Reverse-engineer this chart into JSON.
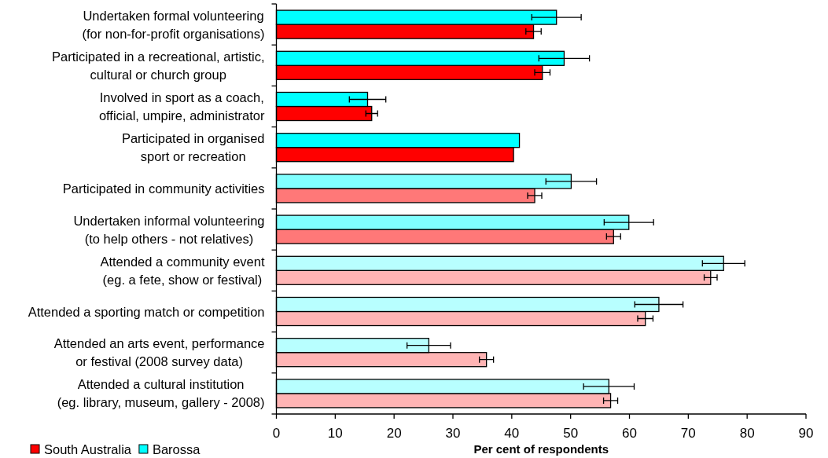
{
  "chart_data": {
    "type": "bar",
    "orientation": "horizontal",
    "xlabel": "Per cent of respondents",
    "categories": [
      "Undertaken formal volunteering\n(for non-for-profit organisations)",
      "Participated in a recreational, artistic,\ncultural or church group",
      "Involved in sport as a coach,\nofficial, umpire, administrator",
      "Participated in organised\nsport or recreation",
      "Participated in community activities",
      "Undertaken informal volunteering\n(to help others - not relatives)",
      "Attended a community event\n(eg. a fete, show or festival)",
      "Attended a sporting match or competition",
      "Attended an arts event, performance\nor festival (2008 survey data)",
      "Attended a cultural institution\n(eg. library, museum, gallery - 2008)"
    ],
    "series": [
      {
        "name": "South Australia",
        "color": "#ff0000",
        "colors": [
          "#ff0000",
          "#ff0000",
          "#ff0000",
          "#ff0000",
          "#ff7878",
          "#ff7878",
          "#ffb4b4",
          "#ffb4b4",
          "#ffb4b4",
          "#ffb4b4"
        ],
        "values": [
          43.7,
          45.2,
          16.2,
          40.3,
          43.9,
          57.3,
          73.8,
          62.7,
          35.7,
          56.8
        ],
        "errors": [
          1.3,
          1.3,
          1.0,
          null,
          1.2,
          1.2,
          1.1,
          1.3,
          1.2,
          1.2
        ]
      },
      {
        "name": "Barossa",
        "color": "#00ffff",
        "colors": [
          "#00ffff",
          "#00ffff",
          "#00ffff",
          "#00ffff",
          "#80ffff",
          "#80ffff",
          "#b8ffff",
          "#b8ffff",
          "#b8ffff",
          "#b8ffff"
        ],
        "values": [
          47.6,
          48.9,
          15.5,
          41.3,
          50.1,
          59.9,
          76.0,
          65.0,
          25.9,
          56.5
        ],
        "errors": [
          4.2,
          4.3,
          3.1,
          null,
          4.3,
          4.2,
          3.6,
          4.1,
          3.7,
          4.3
        ]
      }
    ],
    "xlim": [
      0,
      90
    ],
    "xticks": [
      0,
      10,
      20,
      30,
      40,
      50,
      60,
      70,
      80,
      90
    ],
    "legend": "bottom left"
  }
}
